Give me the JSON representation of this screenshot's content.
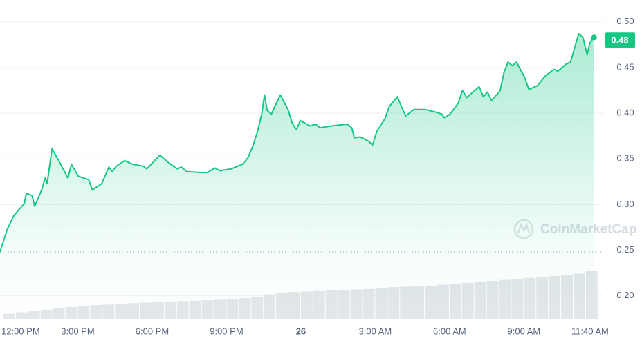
{
  "chart_data": {
    "type": "line",
    "x": [
      -0.14,
      0.14,
      0.42,
      0.84,
      0.92,
      1.15,
      1.26,
      1.54,
      1.68,
      1.76,
      1.96,
      2.23,
      2.6,
      2.74,
      3.02,
      3.44,
      3.58,
      3.97,
      4.25,
      4.39,
      4.55,
      4.89,
      5.22,
      5.64,
      5.78,
      6.31,
      6.65,
      7.01,
      7.18,
      7.4,
      7.96,
      8.24,
      8.52,
      8.74,
      9.19,
      9.64,
      9.86,
      10.08,
      10.25,
      10.42,
      10.53,
      10.64,
      10.81,
      10.98,
      11.17,
      11.48,
      11.65,
      11.82,
      11.98,
      12.37,
      12.6,
      12.77,
      13.21,
      13.88,
      14.05,
      14.16,
      14.39,
      14.75,
      14.89,
      15.06,
      15.39,
      15.56,
      15.89,
      16.06,
      16.23,
      16.56,
      17.01,
      17.46,
      17.68,
      17.79,
      18.02,
      18.35,
      18.52,
      18.69,
      19.19,
      19.36,
      19.53,
      19.69,
      20.03,
      20.2,
      20.36,
      20.53,
      20.7,
      21.03,
      21.2,
      21.54,
      21.87,
      22.21,
      22.37,
      22.71,
      22.88,
      23.04,
      23.21,
      23.38,
      23.55,
      23.66,
      23.83
    ],
    "series": [
      {
        "color": "#16c784",
        "values": [
          0.248,
          0.272,
          0.288,
          0.301,
          0.312,
          0.31,
          0.298,
          0.316,
          0.329,
          0.323,
          0.361,
          0.348,
          0.329,
          0.344,
          0.331,
          0.327,
          0.316,
          0.323,
          0.341,
          0.336,
          0.342,
          0.348,
          0.344,
          0.342,
          0.339,
          0.354,
          0.346,
          0.339,
          0.341,
          0.336,
          0.335,
          0.335,
          0.34,
          0.337,
          0.339,
          0.344,
          0.351,
          0.365,
          0.38,
          0.399,
          0.42,
          0.403,
          0.399,
          0.409,
          0.42,
          0.404,
          0.389,
          0.382,
          0.392,
          0.386,
          0.388,
          0.384,
          0.386,
          0.388,
          0.384,
          0.373,
          0.374,
          0.369,
          0.365,
          0.38,
          0.394,
          0.407,
          0.418,
          0.407,
          0.397,
          0.404,
          0.404,
          0.401,
          0.399,
          0.395,
          0.399,
          0.411,
          0.425,
          0.417,
          0.429,
          0.418,
          0.423,
          0.414,
          0.424,
          0.445,
          0.456,
          0.452,
          0.456,
          0.439,
          0.426,
          0.43,
          0.441,
          0.448,
          0.446,
          0.454,
          0.456,
          0.471,
          0.487,
          0.483,
          0.464,
          0.477,
          0.483
        ]
      }
    ],
    "xlim": [
      -0.14,
      24.2
    ],
    "xticks": [
      {
        "value": 0,
        "label": "12:00 PM"
      },
      {
        "value": 3,
        "label": "3:00 PM"
      },
      {
        "value": 6,
        "label": "6:00 PM"
      },
      {
        "value": 9,
        "label": "9:00 PM"
      },
      {
        "value": 12,
        "label": "26"
      },
      {
        "value": 15,
        "label": "3:00 AM"
      },
      {
        "value": 18,
        "label": "6:00 AM"
      },
      {
        "value": 21,
        "label": "9:00 AM"
      },
      {
        "value": 23.667,
        "label": "11:40 AM"
      }
    ],
    "ylim": [
      0.174,
      0.524
    ],
    "yticks": [
      {
        "value": 0.2,
        "label": "0.20"
      },
      0.25,
      {
        "value": 0.3,
        "label": "0.30"
      },
      0.35,
      {
        "value": 0.4,
        "label": "0.40"
      },
      0.45,
      {
        "value": 0.5,
        "label": "0.50"
      }
    ],
    "grid": true,
    "baseline": 0.248,
    "current_value": 0.48,
    "volume": {
      "color": "#e3e6ea",
      "x": [
        0,
        0.5,
        1,
        1.5,
        2,
        2.5,
        3,
        3.5,
        4,
        4.5,
        5,
        5.5,
        6,
        6.5,
        7,
        7.5,
        8,
        8.5,
        9,
        9.5,
        10,
        10.5,
        11,
        11.5,
        12,
        12.5,
        13,
        13.5,
        14,
        14.5,
        15,
        15.5,
        16,
        16.5,
        17,
        17.5,
        18,
        18.5,
        19,
        19.5,
        20,
        20.5,
        21,
        21.5,
        22,
        22.5,
        23,
        23.5
      ],
      "values": [
        12,
        15,
        18,
        20,
        24,
        26,
        28,
        30,
        31,
        33,
        34,
        35,
        36,
        37,
        38,
        39,
        40,
        41,
        42,
        44,
        46,
        52,
        55,
        57,
        58,
        59,
        60,
        61,
        62,
        63,
        65,
        67,
        68,
        69,
        70,
        72,
        74,
        76,
        78,
        80,
        82,
        84,
        86,
        88,
        90,
        92,
        95,
        100
      ]
    },
    "watermark": "CoinMarketCap"
  }
}
